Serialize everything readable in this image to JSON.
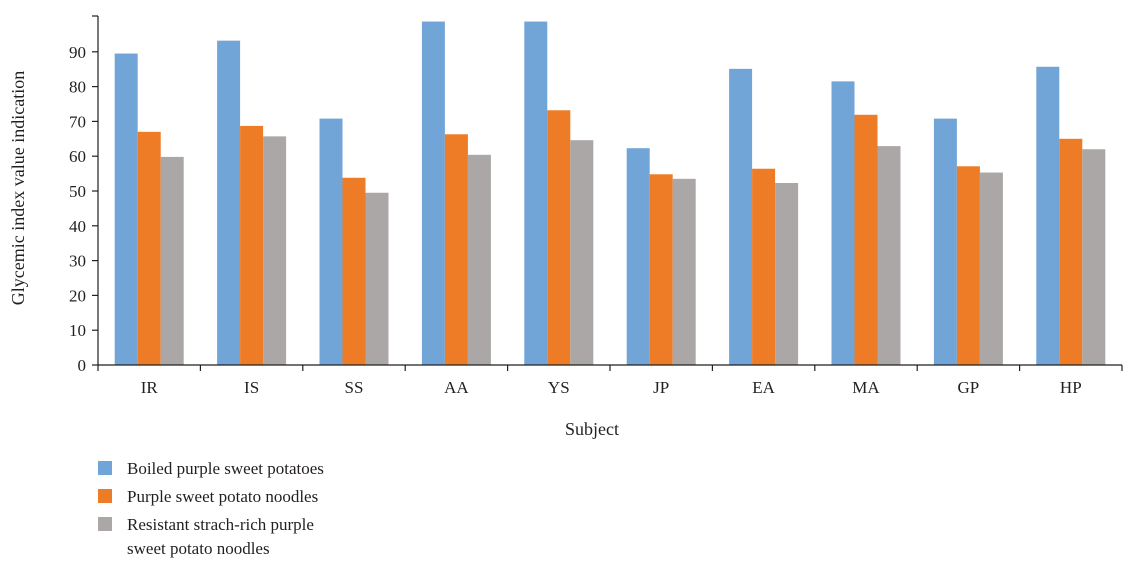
{
  "chart_data": {
    "type": "bar",
    "xlabel": "Subject",
    "ylabel": "Glycemic index value indication",
    "ylim": [
      0,
      100
    ],
    "yticks": [
      0,
      10,
      20,
      30,
      40,
      50,
      60,
      70,
      80,
      90
    ],
    "grid": false,
    "legend_position": "bottom-left",
    "categories": [
      "IR",
      "IS",
      "SS",
      "AA",
      "YS",
      "JP",
      "EA",
      "MA",
      "GP",
      "HP"
    ],
    "series": [
      {
        "name": "Boiled purple sweet potatoes",
        "color": "#72a5d7",
        "values": [
          89.5,
          93.2,
          70.8,
          98.7,
          98.7,
          62.3,
          85.1,
          81.5,
          70.8,
          85.7
        ]
      },
      {
        "name": "Purple sweet potato noodles",
        "color": "#ee7b26",
        "values": [
          67.0,
          68.7,
          53.8,
          66.3,
          73.2,
          54.8,
          56.4,
          71.9,
          57.1,
          65.0
        ]
      },
      {
        "name": "Resistant strach-rich purple sweet potato noodles",
        "name_lines": [
          "Resistant strach-rich purple",
          "sweet potato noodles"
        ],
        "color": "#aaa7a6",
        "values": [
          59.8,
          65.7,
          49.5,
          60.4,
          64.6,
          53.5,
          52.3,
          62.9,
          55.3,
          62.0
        ]
      }
    ]
  }
}
